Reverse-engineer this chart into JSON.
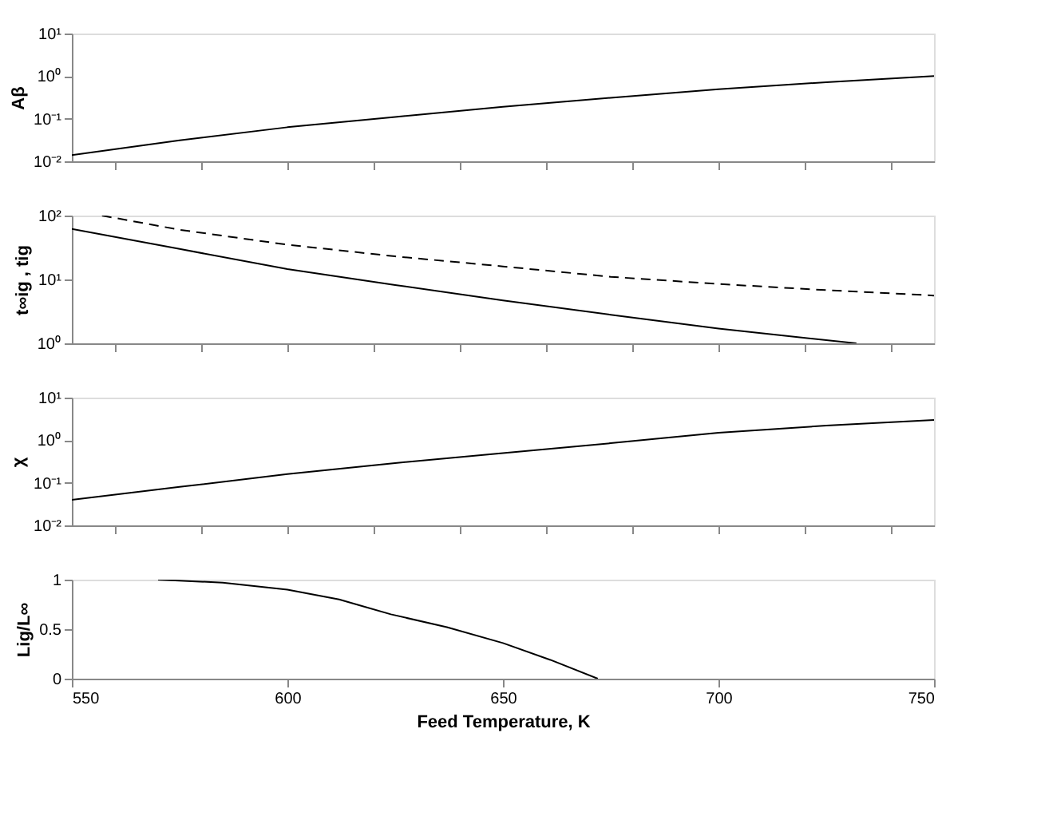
{
  "chart_data": [
    {
      "type": "line",
      "ylabel": "Aβ",
      "log": "y",
      "xlim": [
        550,
        750
      ],
      "ylim": [
        0.01,
        10
      ],
      "yticks": [
        {
          "value": 10,
          "label": "10¹"
        },
        {
          "value": 1,
          "label": "10⁰"
        },
        {
          "value": 0.1,
          "label": "10⁻¹"
        },
        {
          "value": 0.01,
          "label": "10⁻²"
        }
      ],
      "tick_labels": "y",
      "grid": false,
      "series": [
        {
          "color": "#000000",
          "line_style": "solid",
          "x": [
            550,
            575,
            600,
            625,
            650,
            675,
            700,
            725,
            750
          ],
          "values": [
            0.014,
            0.031,
            0.063,
            0.11,
            0.19,
            0.31,
            0.49,
            0.72,
            1.0
          ]
        }
      ]
    },
    {
      "type": "line",
      "ylabel": "t∞ig , tig",
      "log": "y",
      "xlim": [
        550,
        750
      ],
      "ylim": [
        1,
        100
      ],
      "yticks": [
        {
          "value": 100,
          "label": "10²"
        },
        {
          "value": 10,
          "label": "10¹"
        },
        {
          "value": 1,
          "label": "10⁰"
        }
      ],
      "tick_labels": "y",
      "grid": false,
      "series": [
        {
          "color": "#000000",
          "line_style": "solid",
          "x": [
            550,
            575,
            600,
            625,
            650,
            675,
            700,
            732
          ],
          "values": [
            62,
            30,
            14.5,
            8.2,
            4.7,
            2.8,
            1.7,
            1.0
          ]
        },
        {
          "color": "#000000",
          "line_style": "dashed",
          "x": [
            557,
            575,
            600,
            625,
            650,
            675,
            700,
            725,
            750
          ],
          "values": [
            100,
            60,
            35,
            23,
            16,
            11,
            8.5,
            6.8,
            5.6
          ]
        }
      ]
    },
    {
      "type": "line",
      "ylabel": "χ",
      "log": "y",
      "xlim": [
        550,
        750
      ],
      "ylim": [
        0.01,
        10
      ],
      "yticks": [
        {
          "value": 10,
          "label": "10¹"
        },
        {
          "value": 1,
          "label": "10⁰"
        },
        {
          "value": 0.1,
          "label": "10⁻¹"
        },
        {
          "value": 0.01,
          "label": "10⁻²"
        }
      ],
      "tick_labels": "y",
      "grid": false,
      "series": [
        {
          "color": "#000000",
          "line_style": "solid",
          "x": [
            550,
            575,
            600,
            625,
            650,
            675,
            700,
            725,
            750
          ],
          "values": [
            0.04,
            0.08,
            0.16,
            0.29,
            0.5,
            0.85,
            1.5,
            2.2,
            3.0
          ]
        }
      ]
    },
    {
      "type": "line",
      "ylabel": "Lig/L∞",
      "xlabel": "Feed Temperature, K",
      "xlim": [
        550,
        750
      ],
      "xticks": [
        550,
        600,
        650,
        700,
        750
      ],
      "ylim": [
        0,
        1
      ],
      "yticks": [
        {
          "value": 0,
          "label": "0"
        },
        {
          "value": 0.5,
          "label": "0.5"
        },
        {
          "value": 1,
          "label": "1"
        }
      ],
      "grid": false,
      "series": [
        {
          "color": "#000000",
          "line_style": "solid",
          "x": [
            570,
            585,
            600,
            612,
            624,
            637,
            650,
            661,
            672
          ],
          "values": [
            1.0,
            0.97,
            0.9,
            0.8,
            0.65,
            0.52,
            0.36,
            0.19,
            0.0
          ]
        }
      ]
    }
  ]
}
